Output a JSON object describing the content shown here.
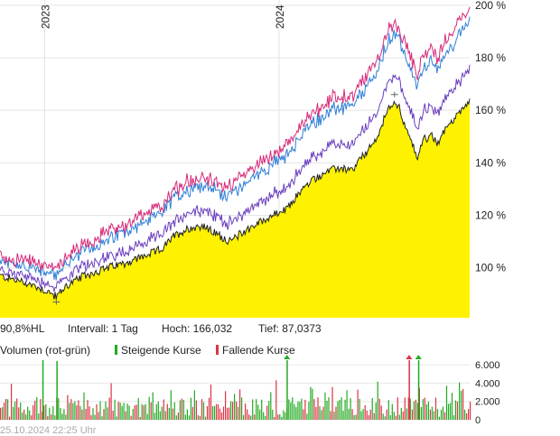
{
  "chart_data": [
    {
      "type": "line",
      "subtype": "price-overlay-with-filled-area",
      "x_year_labels": [
        "2023",
        "2024"
      ],
      "ylim_percent": [
        81,
        202
      ],
      "y_ticks_percent": [
        100,
        120,
        140,
        160,
        180,
        200
      ],
      "y_tick_labels": [
        "100 %",
        "120 %",
        "140 %",
        "160 %",
        "180 %",
        "200 %"
      ],
      "grid": true,
      "colors": {
        "fill": "#fff200",
        "main_line": "#222222",
        "series_purple": "#6a3fbf",
        "series_blue": "#2f7fd6",
        "series_magenta": "#d62a7a"
      },
      "main_series_anchors": [
        [
          0,
          97
        ],
        [
          6,
          94
        ],
        [
          9,
          92
        ],
        [
          12,
          89
        ],
        [
          14,
          93
        ],
        [
          18,
          97
        ],
        [
          23,
          100
        ],
        [
          27,
          102
        ],
        [
          30,
          104
        ],
        [
          33,
          106
        ],
        [
          35,
          108
        ],
        [
          37,
          112
        ],
        [
          40,
          115
        ],
        [
          43,
          116
        ],
        [
          46,
          113
        ],
        [
          49,
          110
        ],
        [
          52,
          114
        ],
        [
          55,
          117
        ],
        [
          58,
          120
        ],
        [
          61,
          122
        ],
        [
          63,
          127
        ],
        [
          65,
          131
        ],
        [
          67,
          134
        ],
        [
          69,
          136
        ],
        [
          72,
          138
        ],
        [
          75,
          137
        ],
        [
          77,
          142
        ],
        [
          79,
          146
        ],
        [
          81,
          152
        ],
        [
          82,
          158
        ],
        [
          84,
          164
        ],
        [
          85,
          161
        ],
        [
          86,
          155
        ],
        [
          87,
          150
        ],
        [
          88,
          146
        ],
        [
          89,
          142
        ],
        [
          90,
          149
        ],
        [
          92,
          150
        ],
        [
          93,
          147
        ],
        [
          95,
          153
        ],
        [
          96,
          156
        ],
        [
          97,
          157
        ],
        [
          98,
          160
        ],
        [
          100,
          164
        ]
      ],
      "offsets": {
        "purple": [
          2,
          12
        ],
        "blue": [
          5,
          30
        ],
        "magenta": [
          7,
          35
        ]
      },
      "info_bar": {
        "range": "90,8%HL",
        "interval": "Intervall: 1 Tag",
        "high": "Hoch: 166,032",
        "low": "Tief: 87,0373"
      }
    },
    {
      "type": "bar",
      "subtype": "volume",
      "title": "Volumen (rot-grün)",
      "legend": [
        {
          "label": "Steigende Kurse",
          "color": "#22aa22"
        },
        {
          "label": "Fallende Kurse",
          "color": "#dd3344"
        }
      ],
      "ylim": [
        0,
        6500
      ],
      "y_ticks": [
        0,
        2000,
        4000,
        6000
      ],
      "y_tick_labels": [
        "0",
        "2.000",
        "4.000",
        "6.000"
      ],
      "spikes": [
        {
          "x": 9,
          "v": 6500,
          "dir": "up"
        },
        {
          "x": 12,
          "v": 6400,
          "dir": "up"
        },
        {
          "x": 61,
          "v": 6500,
          "dir": "up",
          "marker": true
        },
        {
          "x": 87,
          "v": 6500,
          "dir": "down",
          "marker": true
        },
        {
          "x": 89,
          "v": 6500,
          "dir": "up",
          "marker": true
        }
      ]
    }
  ],
  "timestamp": "25.10.2024 22:25 Uhr"
}
